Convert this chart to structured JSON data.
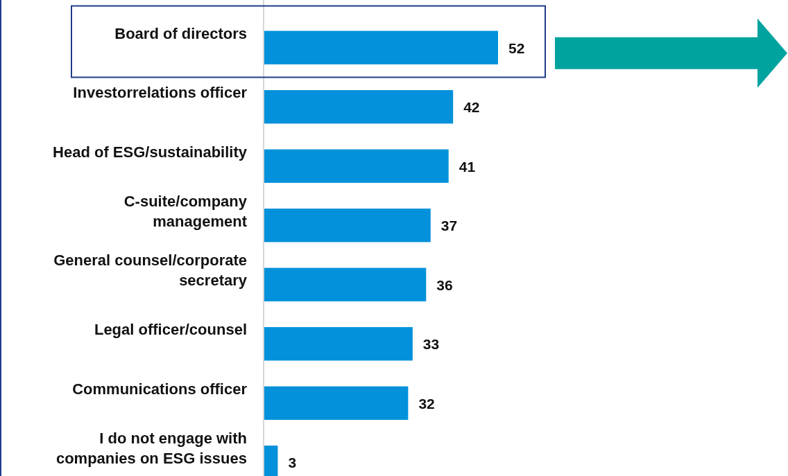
{
  "chart_data": {
    "type": "bar",
    "orientation": "horizontal",
    "categories": [
      "Board of directors",
      "Investorrelations officer",
      "Head of ESG/sustainability",
      "C-suite/company management",
      "General counsel/corporate secretary",
      "Legal officer/counsel",
      "Communications officer",
      "I do not engage with companies on ESG issues"
    ],
    "values": [
      52,
      42,
      41,
      37,
      36,
      33,
      32,
      3
    ],
    "color": "#0291da",
    "data_labels": true,
    "tick_labels": "y"
  }
}
